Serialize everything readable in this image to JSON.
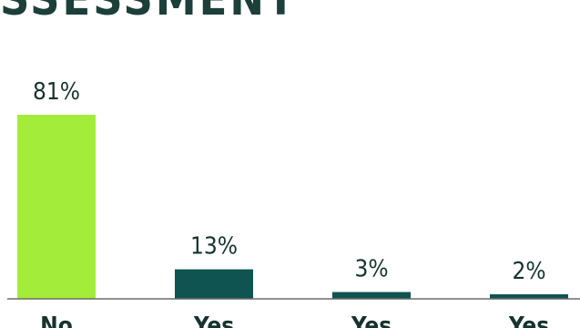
{
  "title": "SSESSMENT",
  "chart_data": {
    "type": "bar",
    "categories": [
      "No",
      "Yes",
      "Yes",
      "Yes"
    ],
    "values": [
      81,
      13,
      3,
      2
    ],
    "value_labels": [
      "81%",
      "13%",
      "3%",
      "2%"
    ],
    "ylim": [
      0,
      100
    ],
    "grid": false,
    "colors": [
      "#a3ec3a",
      "#0f5450",
      "#0f5450",
      "#0f5450"
    ],
    "axis_color": "#6b6b6b"
  }
}
